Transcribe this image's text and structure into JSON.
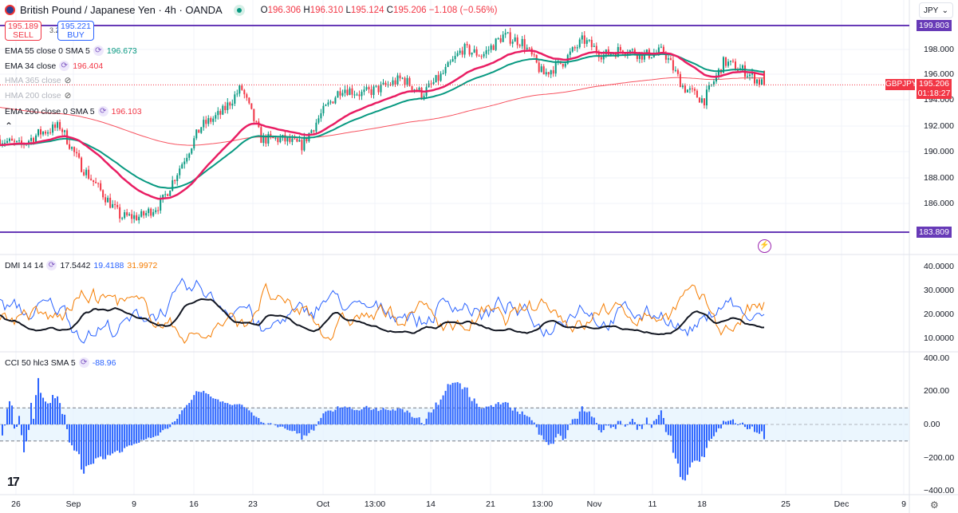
{
  "header": {
    "title": "British Pound / Japanese Yen · 4h · OANDA",
    "open_label": "O",
    "open": "196.306",
    "high_label": "H",
    "high": "196.310",
    "low_label": "L",
    "low": "195.124",
    "close_label": "C",
    "close": "195.206",
    "change": "−1.108 (−0.56%)"
  },
  "trade": {
    "sell_price": "195.189",
    "sell_label": "SELL",
    "spread": "3.2",
    "buy_price": "195.221",
    "buy_label": "BUY"
  },
  "legend": [
    {
      "label": "EMA 55 close 0 SMA 5",
      "value": "196.673",
      "color": "#089981"
    },
    {
      "label": "EMA 34 close",
      "value": "196.404",
      "color": "#f23645"
    },
    {
      "label": "HMA 365 close",
      "value": ""
    },
    {
      "label": "HMA 200 close",
      "value": ""
    },
    {
      "label": "EMA 200 close 0 SMA 5",
      "value": "196.103",
      "color": "#f23645"
    }
  ],
  "dmi": {
    "label": "DMI 14 14",
    "adx": "17.5442",
    "plus": "19.4188",
    "minus": "31.9972",
    "ticks": [
      "40.0000",
      "30.0000",
      "20.0000",
      "10.0000"
    ]
  },
  "cci": {
    "label": "CCI 50 hlc3 SMA 5",
    "value": "-88.96",
    "ticks": [
      "400.00",
      "200.00",
      "0.00",
      "−200.00",
      "−400.00"
    ]
  },
  "price_axis": {
    "currency": "JPY",
    "ticks": [
      "198.000",
      "196.000",
      "194.000",
      "192.000",
      "190.000",
      "188.000",
      "186.000"
    ],
    "upper_line": "199.803",
    "lower_line": "183.809",
    "symbol": "GBPJPY",
    "last": "195.206",
    "countdown": "01:18:27"
  },
  "time_axis": [
    "26",
    "Sep",
    "9",
    "16",
    "23",
    "Oct",
    "13:00",
    "14",
    "21",
    "13:00",
    "Nov",
    "11",
    "18",
    "25",
    "Dec",
    "9"
  ],
  "colors": {
    "up": "#089981",
    "down": "#f23645",
    "line": "#673ab7",
    "plusdi": "#2962ff",
    "minusdi": "#f57c00"
  },
  "chart_data": {
    "type": "candlestick",
    "symbol": "GBPJPY",
    "timeframe": "4h",
    "ylim": [
      183.809,
      199.803
    ],
    "approx_close_path": [
      191,
      190.5,
      191.5,
      192,
      189,
      187,
      185,
      185,
      186,
      189,
      192,
      193,
      195,
      191,
      191,
      190.5,
      193,
      195,
      194.5,
      195,
      195.7,
      194.5,
      196,
      198,
      197.5,
      199,
      198.5,
      196,
      197,
      198.7,
      197.5,
      198,
      197.5,
      197.8,
      195,
      194,
      197,
      196.3,
      195.2
    ]
  }
}
